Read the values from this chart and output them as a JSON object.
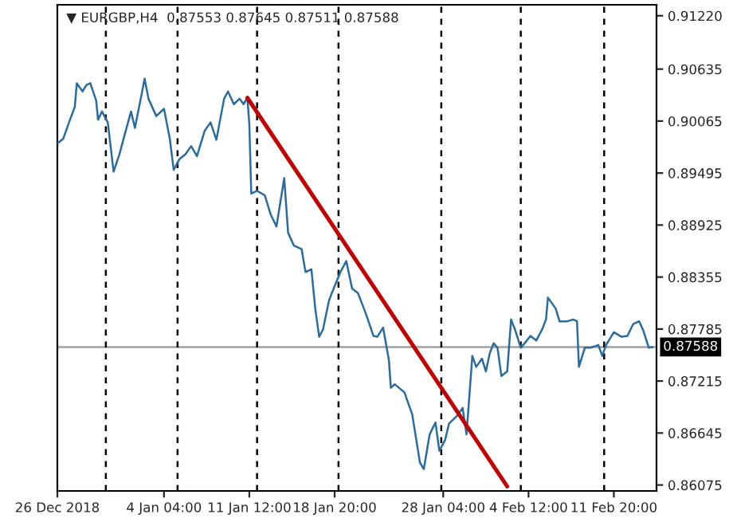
{
  "chart_data": {
    "type": "line",
    "title": "▼ EURGBP,H4  0.87553 0.87645 0.87511 0.87588",
    "xlim": [
      "2018-12-26T00:00",
      "2019-02-15T12:00"
    ],
    "ylim": [
      0.8601,
      0.9134
    ],
    "xticks": [
      {
        "value": "2018-12-26T00:00",
        "label": "26 Dec 2018"
      },
      {
        "value": "2019-01-04T04:00",
        "label": "4 Jan 04:00"
      },
      {
        "value": "2019-01-11T12:00",
        "label": "11 Jan 12:00"
      },
      {
        "value": "2019-01-18T20:00",
        "label": "18 Jan 20:00"
      },
      {
        "value": "2019-01-28T04:00",
        "label": "28 Jan 04:00"
      },
      {
        "value": "2019-02-04T12:00",
        "label": "4 Feb 12:00"
      },
      {
        "value": "2019-02-11T20:00",
        "label": "11 Feb 20:00"
      }
    ],
    "yticks": [
      0.86075,
      0.86645,
      0.87215,
      0.87785,
      0.88355,
      0.88925,
      0.89495,
      0.90065,
      0.90635,
      {
        "value": 0.9122,
        "label": "0.91220"
      }
    ],
    "grid": false,
    "legend": false,
    "series": [
      {
        "color": "#2b6c9c",
        "x": [
          "2018-12-26T00:00",
          "2018-12-26T12:00",
          "2018-12-27T00:00",
          "2018-12-27T12:00",
          "2018-12-27T16:00",
          "2018-12-28T04:00",
          "2018-12-28T12:00",
          "2018-12-28T20:00",
          "2018-12-29T08:00",
          "2018-12-29T12:00",
          "2018-12-29T20:00",
          "2018-12-30T08:00",
          "2018-12-30T20:00",
          "2018-12-31T08:00",
          "2018-12-31T16:00",
          "2019-01-01T08:00",
          "2019-01-01T16:00",
          "2019-01-02T04:00",
          "2019-01-02T12:00",
          "2019-01-02T20:00",
          "2019-01-03T12:00",
          "2019-01-04T04:00",
          "2019-01-04T16:00",
          "2019-01-05T00:00",
          "2019-01-05T12:00",
          "2019-01-06T00:00",
          "2019-01-06T12:00",
          "2019-01-07T00:00",
          "2019-01-07T16:00",
          "2019-01-08T04:00",
          "2019-01-08T16:00",
          "2019-01-09T08:00",
          "2019-01-09T16:00",
          "2019-01-10T04:00",
          "2019-01-10T16:00",
          "2019-01-11T00:00",
          "2019-01-11T08:00",
          "2019-01-11T12:00",
          "2019-01-11T16:00",
          "2019-01-12T04:00",
          "2019-01-12T20:00",
          "2019-01-13T08:00",
          "2019-01-13T20:00",
          "2019-01-14T12:00",
          "2019-01-14T20:00",
          "2019-01-15T08:00",
          "2019-01-16T00:00",
          "2019-01-16T04:00",
          "2019-01-16T08:00",
          "2019-01-16T20:00",
          "2019-01-17T04:00",
          "2019-01-17T12:00",
          "2019-01-17T20:00",
          "2019-01-18T08:00",
          "2019-01-18T12:00",
          "2019-01-19T08:00",
          "2019-01-19T20:00",
          "2019-01-20T08:00",
          "2019-01-20T20:00",
          "2019-01-21T12:00",
          "2019-01-22T04:00",
          "2019-01-22T12:00",
          "2019-01-23T00:00",
          "2019-01-23T12:00",
          "2019-01-23T16:00",
          "2019-01-24T00:00",
          "2019-01-24T20:00",
          "2019-01-25T12:00",
          "2019-01-26T04:00",
          "2019-01-26T12:00",
          "2019-01-27T00:00",
          "2019-01-27T12:00",
          "2019-01-27T20:00",
          "2019-01-28T08:00",
          "2019-01-28T16:00",
          "2019-01-29T08:00",
          "2019-01-29T20:00",
          "2019-01-30T04:00",
          "2019-01-30T12:00",
          "2019-01-30T16:00",
          "2019-01-31T00:00",
          "2019-01-31T12:00",
          "2019-01-31T20:00",
          "2019-02-01T04:00",
          "2019-02-01T12:00",
          "2019-02-01T20:00",
          "2019-02-02T04:00",
          "2019-02-02T16:00",
          "2019-02-03T00:00",
          "2019-02-03T08:00",
          "2019-02-03T20:00",
          "2019-02-04T04:00",
          "2019-02-04T16:00",
          "2019-02-05T04:00",
          "2019-02-05T16:00",
          "2019-02-06T00:00",
          "2019-02-06T04:00",
          "2019-02-06T20:00",
          "2019-02-07T04:00",
          "2019-02-07T20:00",
          "2019-02-08T08:00",
          "2019-02-08T16:00",
          "2019-02-08T20:00",
          "2019-02-09T08:00",
          "2019-02-09T20:00",
          "2019-02-10T12:00",
          "2019-02-10T20:00",
          "2019-02-11T04:00",
          "2019-02-11T20:00",
          "2019-02-12T12:00",
          "2019-02-13T00:00",
          "2019-02-13T12:00",
          "2019-02-14T00:00",
          "2019-02-14T08:00",
          "2019-02-14T20:00",
          "2019-02-15T04:00"
        ],
        "values": [
          0.8982,
          0.8987,
          0.9005,
          0.9022,
          0.9048,
          0.9039,
          0.9046,
          0.9048,
          0.9029,
          0.9008,
          0.9017,
          0.9005,
          0.8951,
          0.897,
          0.8986,
          0.9017,
          0.8999,
          0.9031,
          0.9053,
          0.9031,
          0.9012,
          0.902,
          0.8987,
          0.8953,
          0.8965,
          0.897,
          0.8979,
          0.8968,
          0.8996,
          0.9005,
          0.8986,
          0.9031,
          0.9039,
          0.9025,
          0.9031,
          0.9025,
          0.9032,
          0.9003,
          0.8927,
          0.893,
          0.8925,
          0.8904,
          0.8891,
          0.8944,
          0.8884,
          0.887,
          0.8866,
          0.8853,
          0.8841,
          0.8844,
          0.8801,
          0.877,
          0.8778,
          0.8809,
          0.8815,
          0.8841,
          0.8853,
          0.8823,
          0.8818,
          0.8796,
          0.8771,
          0.877,
          0.878,
          0.8744,
          0.8714,
          0.8718,
          0.8709,
          0.8685,
          0.8632,
          0.8625,
          0.8663,
          0.8676,
          0.8645,
          0.8657,
          0.8675,
          0.8683,
          0.8692,
          0.8663,
          0.872,
          0.8749,
          0.8737,
          0.8746,
          0.8732,
          0.8752,
          0.8763,
          0.8758,
          0.8727,
          0.8732,
          0.8789,
          0.8778,
          0.8758,
          0.8763,
          0.8771,
          0.8766,
          0.8778,
          0.8789,
          0.8813,
          0.8801,
          0.8787,
          0.8787,
          0.8789,
          0.8787,
          0.8737,
          0.8758,
          0.8758,
          0.8761,
          0.8749,
          0.8761,
          0.8775,
          0.877,
          0.8771,
          0.8784,
          0.8787,
          0.8778,
          0.8758,
          0.87588
        ]
      },
      {
        "color": "#c00000",
        "x": [
          "2019-01-11T08:00",
          "2019-02-02T16:00"
        ],
        "values": [
          0.9032,
          0.8606
        ]
      }
    ],
    "ref_lines": [
      {
        "axis": "y",
        "value": 0.87588,
        "label": "0.87588",
        "color": "#a0a0a0",
        "line_style": "solid"
      },
      {
        "axis": "x",
        "value": "2018-12-30T04:00",
        "color": "#000000",
        "line_style": "dashed"
      },
      {
        "axis": "x",
        "value": "2019-01-05T08:00",
        "color": "#000000",
        "line_style": "dashed"
      },
      {
        "axis": "x",
        "value": "2019-01-12T04:00",
        "color": "#000000",
        "line_style": "dashed"
      },
      {
        "axis": "x",
        "value": "2019-01-19T04:00",
        "color": "#000000",
        "line_style": "dashed"
      },
      {
        "axis": "x",
        "value": "2019-01-28T00:00",
        "color": "#000000",
        "line_style": "dashed"
      },
      {
        "axis": "x",
        "value": "2019-02-03T20:00",
        "color": "#000000",
        "line_style": "dashed"
      },
      {
        "axis": "x",
        "value": "2019-02-11T00:00",
        "color": "#000000",
        "line_style": "dashed"
      }
    ]
  }
}
